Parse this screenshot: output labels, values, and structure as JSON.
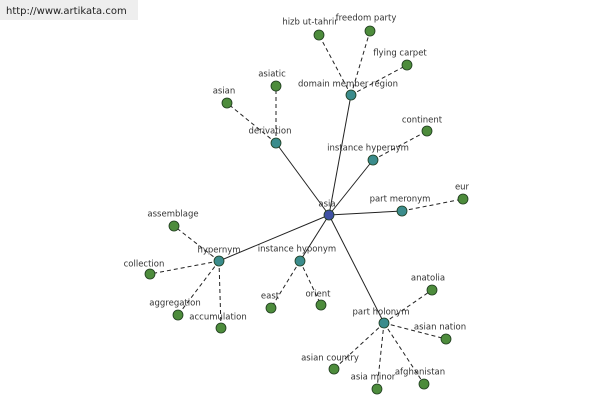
{
  "watermark": "http://www.artikata.com",
  "nodes": [
    {
      "label": "asia"
    },
    {
      "label": "domain member region"
    },
    {
      "label": "derivation"
    },
    {
      "label": "instance hypernym"
    },
    {
      "label": "part meronym"
    },
    {
      "label": "hypernym"
    },
    {
      "label": "instance hyponym"
    },
    {
      "label": "part holonym"
    },
    {
      "label": "hizb ut-tahrir"
    },
    {
      "label": "freedom party"
    },
    {
      "label": "flying carpet"
    },
    {
      "label": "asiatic"
    },
    {
      "label": "asian"
    },
    {
      "label": "continent"
    },
    {
      "label": "eur"
    },
    {
      "label": "assemblage"
    },
    {
      "label": "collection"
    },
    {
      "label": "aggregation"
    },
    {
      "label": "accumulation"
    },
    {
      "label": "east"
    },
    {
      "label": "orient"
    },
    {
      "label": "anatolia"
    },
    {
      "label": "asian nation"
    },
    {
      "label": "asian country"
    },
    {
      "label": "asia minor"
    },
    {
      "label": "afghanistan"
    }
  ]
}
